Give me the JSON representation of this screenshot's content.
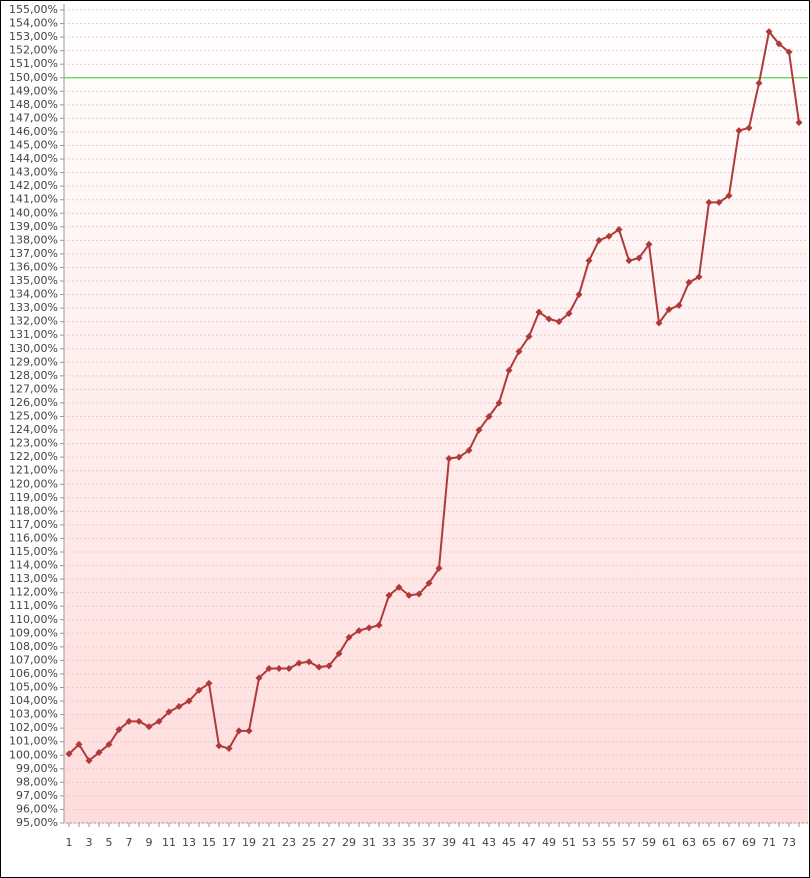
{
  "chart_data": {
    "type": "line",
    "categories": [
      1,
      null,
      3,
      null,
      5,
      null,
      7,
      null,
      9,
      null,
      11,
      null,
      13,
      null,
      15,
      null,
      17,
      null,
      19,
      null,
      21,
      null,
      23,
      null,
      25,
      null,
      27,
      null,
      29,
      null,
      31,
      null,
      33,
      null,
      35,
      null,
      37,
      null,
      39,
      null,
      41,
      null,
      43,
      null,
      45,
      null,
      47,
      null,
      49,
      null,
      51,
      null,
      53,
      null,
      55,
      null,
      57,
      null,
      59,
      null,
      61,
      null,
      63,
      null,
      65,
      null,
      67,
      null,
      69,
      null,
      71,
      null,
      73,
      null
    ],
    "series": [
      {
        "color": "#b03a3a",
        "values": [
          100.1,
          100.8,
          99.6,
          100.2,
          100.8,
          101.9,
          102.5,
          102.5,
          102.1,
          102.5,
          103.2,
          103.6,
          104.0,
          104.8,
          105.3,
          100.7,
          100.5,
          101.8,
          101.8,
          105.7,
          106.4,
          106.4,
          106.4,
          106.8,
          106.9,
          106.5,
          106.6,
          107.5,
          108.7,
          109.2,
          109.4,
          109.6,
          111.8,
          112.4,
          111.8,
          111.9,
          112.7,
          113.8,
          121.9,
          122.0,
          122.5,
          124.0,
          125.0,
          126.0,
          128.4,
          129.8,
          130.9,
          132.7,
          132.2,
          132.0,
          132.6,
          134.0,
          136.5,
          138.0,
          138.3,
          138.8,
          136.5,
          136.7,
          137.7,
          131.9,
          132.9,
          133.2,
          134.9,
          135.3,
          140.8,
          140.8,
          141.3,
          146.1,
          146.3,
          149.6,
          153.4,
          152.5,
          151.9,
          146.7
        ]
      }
    ],
    "reference_line": {
      "value": 150,
      "color": "#33cc33"
    },
    "ylim": [
      95,
      155
    ],
    "yticks": [
      {
        "value": 95,
        "label": "95,00%"
      },
      {
        "value": 96,
        "label": "96,00%"
      },
      {
        "value": 97,
        "label": "97,00%"
      },
      {
        "value": 98,
        "label": "98,00%"
      },
      {
        "value": 99,
        "label": "99,00%"
      },
      {
        "value": 100,
        "label": "100,00%"
      },
      {
        "value": 101,
        "label": "101,00%"
      },
      {
        "value": 102,
        "label": "102,00%"
      },
      {
        "value": 103,
        "label": "103,00%"
      },
      {
        "value": 104,
        "label": "104,00%"
      },
      {
        "value": 105,
        "label": "105,00%"
      },
      {
        "value": 106,
        "label": "106,00%"
      },
      {
        "value": 107,
        "label": "107,00%"
      },
      {
        "value": 108,
        "label": "108,00%"
      },
      {
        "value": 109,
        "label": "109,00%"
      },
      {
        "value": 110,
        "label": "110,00%"
      },
      {
        "value": 111,
        "label": "111,00%"
      },
      {
        "value": 112,
        "label": "112,00%"
      },
      {
        "value": 113,
        "label": "113,00%"
      },
      {
        "value": 114,
        "label": "114,00%"
      },
      {
        "value": 115,
        "label": "115,00%"
      },
      {
        "value": 116,
        "label": "116,00%"
      },
      {
        "value": 117,
        "label": "117,00%"
      },
      {
        "value": 118,
        "label": "118,00%"
      },
      {
        "value": 119,
        "label": "119,00%"
      },
      {
        "value": 120,
        "label": "120,00%"
      },
      {
        "value": 121,
        "label": "121,00%"
      },
      {
        "value": 122,
        "label": "122,00%"
      },
      {
        "value": 123,
        "label": "123,00%"
      },
      {
        "value": 124,
        "label": "124,00%"
      },
      {
        "value": 125,
        "label": "125,00%"
      },
      {
        "value": 126,
        "label": "126,00%"
      },
      {
        "value": 127,
        "label": "127,00%"
      },
      {
        "value": 128,
        "label": "128,00%"
      },
      {
        "value": 129,
        "label": "129,00%"
      },
      {
        "value": 130,
        "label": "130,00%"
      },
      {
        "value": 131,
        "label": "131,00%"
      },
      {
        "value": 132,
        "label": "132,00%"
      },
      {
        "value": 133,
        "label": "133,00%"
      },
      {
        "value": 134,
        "label": "134,00%"
      },
      {
        "value": 135,
        "label": "135,00%"
      },
      {
        "value": 136,
        "label": "136,00%"
      },
      {
        "value": 137,
        "label": "137,00%"
      },
      {
        "value": 138,
        "label": "138,00%"
      },
      {
        "value": 139,
        "label": "139,00%"
      },
      {
        "value": 140,
        "label": "140,00%"
      },
      {
        "value": 141,
        "label": "141,00%"
      },
      {
        "value": 142,
        "label": "142,00%"
      },
      {
        "value": 143,
        "label": "143,00%"
      },
      {
        "value": 144,
        "label": "144,00%"
      },
      {
        "value": 145,
        "label": "145,00%"
      },
      {
        "value": 146,
        "label": "146,00%"
      },
      {
        "value": 147,
        "label": "147,00%"
      },
      {
        "value": 148,
        "label": "148,00%"
      },
      {
        "value": 149,
        "label": "149,00%"
      },
      {
        "value": 150,
        "label": "150,00%"
      },
      {
        "value": 151,
        "label": "151,00%"
      },
      {
        "value": 152,
        "label": "152,00%"
      },
      {
        "value": 153,
        "label": "153,00%"
      },
      {
        "value": 154,
        "label": "154,00%"
      },
      {
        "value": 155,
        "label": "155,00%"
      }
    ],
    "grid": true
  }
}
